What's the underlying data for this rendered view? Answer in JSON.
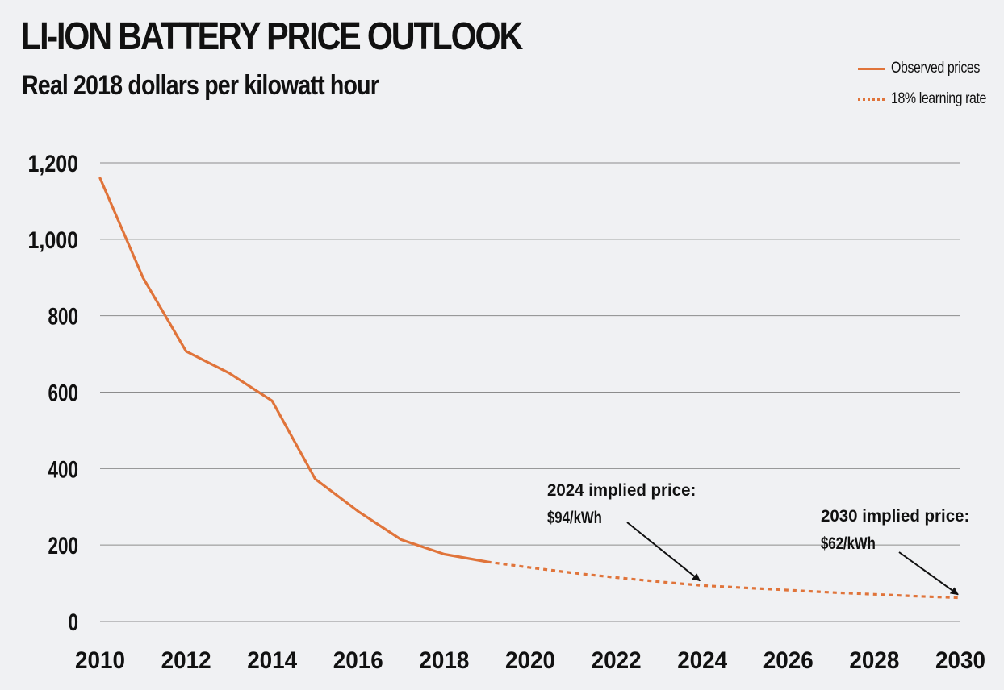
{
  "title": "LI-ION BATTERY PRICE OUTLOOK",
  "subtitle": "Real 2018 dollars per kilowatt hour",
  "legend": {
    "observed": "Observed prices",
    "projected": "18% learning rate"
  },
  "colors": {
    "series": "#e0743a",
    "grid": "#8c8c8c",
    "text": "#111111",
    "background": "#f0f1f3",
    "arrow": "#111111"
  },
  "chart_data": {
    "type": "line",
    "title": "LI-ION BATTERY PRICE OUTLOOK",
    "subtitle": "Real 2018 dollars per kilowatt hour",
    "xlabel": "",
    "ylabel": "",
    "xlim": [
      2010,
      2030
    ],
    "ylim": [
      0,
      1200
    ],
    "x_ticks": [
      "2010",
      "2012",
      "2014",
      "2016",
      "2018",
      "2020",
      "2022",
      "2024",
      "2026",
      "2028",
      "2030"
    ],
    "y_ticks": [
      "0",
      "200",
      "400",
      "600",
      "800",
      "1,000",
      "1,200"
    ],
    "x_tick_values": [
      2010,
      2012,
      2014,
      2016,
      2018,
      2020,
      2022,
      2024,
      2026,
      2028,
      2030
    ],
    "y_tick_values": [
      0,
      200,
      400,
      600,
      800,
      1000,
      1200
    ],
    "grid": "horizontal",
    "legend_position": "top-right",
    "series": [
      {
        "name": "Observed prices",
        "style": "solid",
        "x": [
          2010,
          2011,
          2012,
          2013,
          2014,
          2015,
          2016,
          2017,
          2018,
          2019
        ],
        "y": [
          1160,
          899,
          707,
          650,
          577,
          373,
          288,
          214,
          176,
          156
        ]
      },
      {
        "name": "18% learning rate",
        "style": "dotted",
        "x": [
          2019,
          2020,
          2021,
          2022,
          2023,
          2024,
          2025,
          2026,
          2027,
          2028,
          2029,
          2030
        ],
        "y": [
          156,
          141,
          127,
          115,
          104,
          94,
          88,
          82,
          76,
          71,
          66,
          62
        ]
      }
    ],
    "annotations": [
      {
        "lines": [
          "2024 implied price:",
          "$94/kWh"
        ],
        "x": 2024,
        "y": 94
      },
      {
        "lines": [
          "2030 implied price:",
          "$62/kWh"
        ],
        "x": 2030,
        "y": 62
      }
    ]
  }
}
